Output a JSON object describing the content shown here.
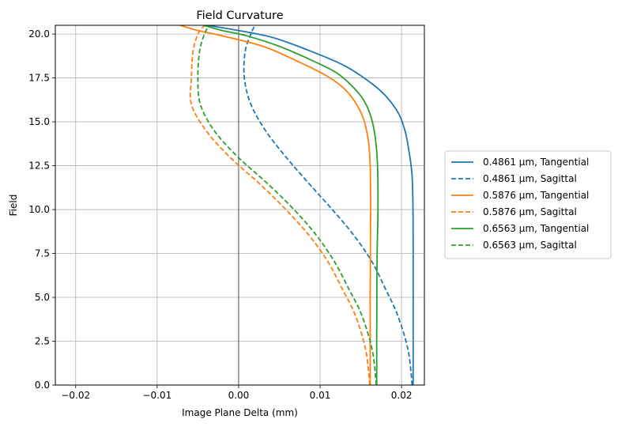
{
  "chart_data": {
    "type": "line",
    "title": "Field Curvature",
    "xlabel": "Image Plane Delta (mm)",
    "ylabel": "Field",
    "xlim": [
      -0.0225,
      0.0228
    ],
    "ylim": [
      0,
      20.5
    ],
    "xticks": [
      -0.02,
      -0.01,
      0.0,
      0.01,
      0.02
    ],
    "xtick_labels": [
      "−0.02",
      "−0.01",
      "0.00",
      "0.01",
      "0.02"
    ],
    "yticks": [
      0.0,
      2.5,
      5.0,
      7.5,
      10.0,
      12.5,
      15.0,
      17.5,
      20.0
    ],
    "ytick_labels": [
      "0.0",
      "2.5",
      "5.0",
      "7.5",
      "10.0",
      "12.5",
      "15.0",
      "17.5",
      "20.0"
    ],
    "grid": true,
    "zero_line_x": 0.0,
    "legend_placement": "outside right",
    "series": [
      {
        "name": "0.4861 µm, Tangential",
        "color": "#1f77b4",
        "dash": "solid",
        "points": [
          [
            0.02142,
            0
          ],
          [
            0.02142,
            2.5
          ],
          [
            0.02142,
            5
          ],
          [
            0.02142,
            7.5
          ],
          [
            0.0214,
            10
          ],
          [
            0.02128,
            12
          ],
          [
            0.02085,
            13.5
          ],
          [
            0.02042,
            14.5
          ],
          [
            0.0196,
            15.5
          ],
          [
            0.018,
            16.5
          ],
          [
            0.016,
            17.3
          ],
          [
            0.013,
            18.2
          ],
          [
            0.009,
            19.0
          ],
          [
            0.0042,
            19.8
          ],
          [
            0.0,
            20.2
          ],
          [
            -0.0038,
            20.5
          ]
        ]
      },
      {
        "name": "0.4861 µm, Sagittal",
        "color": "#1f77b4",
        "dash": "dashed",
        "points": [
          [
            0.0213,
            0
          ],
          [
            0.0208,
            2.0
          ],
          [
            0.0195,
            4.0
          ],
          [
            0.018,
            5.5
          ],
          [
            0.0164,
            7.0
          ],
          [
            0.0142,
            8.5
          ],
          [
            0.0115,
            10.0
          ],
          [
            0.0086,
            11.5
          ],
          [
            0.0058,
            13.0
          ],
          [
            0.0033,
            14.5
          ],
          [
            0.0015,
            16.0
          ],
          [
            0.0007,
            17.5
          ],
          [
            0.0008,
            19.0
          ],
          [
            0.0015,
            20.0
          ],
          [
            0.002,
            20.5
          ]
        ]
      },
      {
        "name": "0.5876 µm, Tangential",
        "color": "#ff7f0e",
        "dash": "solid",
        "points": [
          [
            0.01615,
            0
          ],
          [
            0.01615,
            2.5
          ],
          [
            0.01615,
            5
          ],
          [
            0.01617,
            7.5
          ],
          [
            0.0162,
            10
          ],
          [
            0.01615,
            12.5
          ],
          [
            0.0159,
            14.0
          ],
          [
            0.0153,
            15.2
          ],
          [
            0.0142,
            16.2
          ],
          [
            0.0127,
            17.0
          ],
          [
            0.0105,
            17.7
          ],
          [
            0.007,
            18.5
          ],
          [
            0.003,
            19.3
          ],
          [
            -0.002,
            19.9
          ],
          [
            -0.005,
            20.2
          ],
          [
            -0.0072,
            20.5
          ]
        ]
      },
      {
        "name": "0.5876 µm, Sagittal",
        "color": "#ff7f0e",
        "dash": "dashed",
        "points": [
          [
            0.0161,
            0
          ],
          [
            0.0156,
            2.0
          ],
          [
            0.0143,
            4.0
          ],
          [
            0.0127,
            5.5
          ],
          [
            0.011,
            7.0
          ],
          [
            0.0087,
            8.5
          ],
          [
            0.0058,
            10.0
          ],
          [
            0.0025,
            11.5
          ],
          [
            -0.0011,
            13.0
          ],
          [
            -0.004,
            14.5
          ],
          [
            -0.0058,
            16.0
          ],
          [
            -0.0058,
            17.5
          ],
          [
            -0.0056,
            19.0
          ],
          [
            -0.005,
            20.0
          ],
          [
            -0.0042,
            20.5
          ]
        ]
      },
      {
        "name": "0.6563 µm, Tangential",
        "color": "#2ca02c",
        "dash": "solid",
        "points": [
          [
            0.01695,
            0
          ],
          [
            0.01695,
            2.5
          ],
          [
            0.01697,
            5
          ],
          [
            0.017,
            7.5
          ],
          [
            0.0171,
            10
          ],
          [
            0.01705,
            12.5
          ],
          [
            0.0168,
            14.0
          ],
          [
            0.0163,
            15.2
          ],
          [
            0.0154,
            16.2
          ],
          [
            0.014,
            17.0
          ],
          [
            0.012,
            17.8
          ],
          [
            0.009,
            18.5
          ],
          [
            0.005,
            19.3
          ],
          [
            0.001,
            19.9
          ],
          [
            -0.002,
            20.2
          ],
          [
            -0.0043,
            20.5
          ]
        ]
      },
      {
        "name": "0.6563 µm, Sagittal",
        "color": "#2ca02c",
        "dash": "dashed",
        "points": [
          [
            0.0169,
            0
          ],
          [
            0.0164,
            2.0
          ],
          [
            0.0151,
            4.0
          ],
          [
            0.0135,
            5.5
          ],
          [
            0.0118,
            7.0
          ],
          [
            0.0096,
            8.5
          ],
          [
            0.0068,
            10.0
          ],
          [
            0.0035,
            11.5
          ],
          [
            -0.0001,
            13.0
          ],
          [
            -0.003,
            14.5
          ],
          [
            -0.0047,
            16.0
          ],
          [
            -0.005,
            17.5
          ],
          [
            -0.0048,
            19.0
          ],
          [
            -0.0042,
            20.0
          ],
          [
            -0.0036,
            20.5
          ]
        ]
      }
    ]
  }
}
